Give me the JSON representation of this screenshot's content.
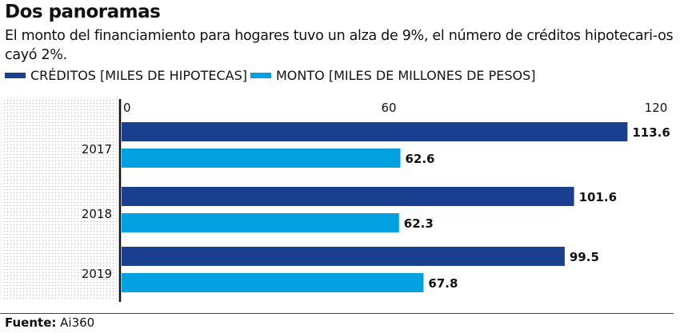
{
  "title": "Dos panoramas",
  "subtitle": "El monto del financiamiento para hogares tuvo un alza de 9%, el número de créditos hipotecari-os cayó 2%.",
  "source_label": "Fuente:",
  "source_value": "Ai360",
  "colors": {
    "creditos": "#1b3f8f",
    "monto": "#00a0e1"
  },
  "chart_data": {
    "type": "bar",
    "orientation": "horizontal",
    "categories": [
      "2017",
      "2018",
      "2019"
    ],
    "series": [
      {
        "name": "CRÉDITOS [MILES DE HIPOTECAS]",
        "values": [
          113.6,
          101.6,
          99.5
        ]
      },
      {
        "name": "MONTO [MILES DE MILLONES DE PESOS]",
        "values": [
          62.6,
          62.3,
          67.8
        ]
      }
    ],
    "xlim": [
      0,
      120
    ],
    "xticks": [
      "0",
      "60",
      "120"
    ],
    "legend": "top-left",
    "grid": false
  }
}
